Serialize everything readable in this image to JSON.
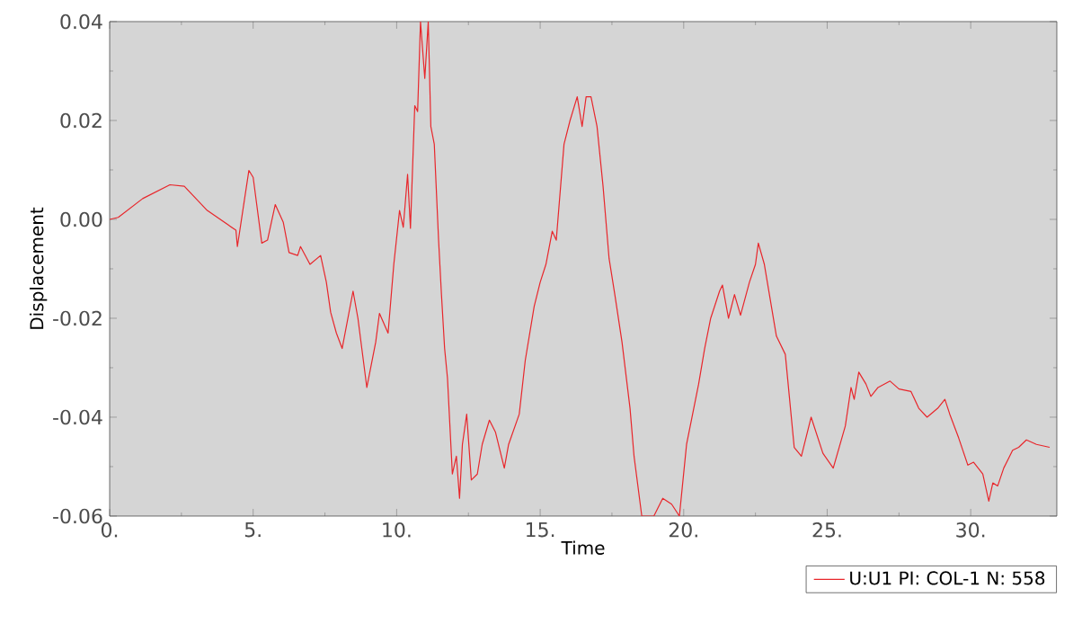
{
  "chart_data": {
    "type": "line",
    "xlabel": "Time",
    "ylabel": "Displacement",
    "xlim": [
      0,
      33
    ],
    "ylim": [
      -0.06,
      0.04
    ],
    "xticks": [
      {
        "value": 0,
        "label": "0."
      },
      {
        "value": 5,
        "label": "5."
      },
      {
        "value": 10,
        "label": "10."
      },
      {
        "value": 15,
        "label": "15."
      },
      {
        "value": 20,
        "label": "20."
      },
      {
        "value": 25,
        "label": "25."
      },
      {
        "value": 30,
        "label": "30."
      }
    ],
    "yticks": [
      {
        "value": -0.06,
        "label": "-0.06"
      },
      {
        "value": -0.04,
        "label": "-0.04"
      },
      {
        "value": -0.02,
        "label": "-0.02"
      },
      {
        "value": 0,
        "label": "0.00"
      },
      {
        "value": 0.02,
        "label": "0.02"
      },
      {
        "value": 0.04,
        "label": "0.04"
      }
    ],
    "grid": false,
    "legend": "bottom right",
    "marker": "none",
    "line_style": "solid",
    "series": [
      {
        "name": "U:U1 PI: COL-1 N: 558",
        "color": "#e8262b",
        "x": [
          0,
          0.3,
          1.15,
          2.1,
          2.6,
          3.4,
          4.4,
          4.45,
          4.85,
          5.0,
          5.3,
          5.5,
          5.77,
          6.05,
          6.25,
          6.55,
          6.65,
          6.98,
          7.35,
          7.55,
          7.7,
          7.9,
          8.1,
          8.48,
          8.65,
          8.96,
          9.27,
          9.4,
          9.7,
          9.9,
          10.1,
          10.23,
          10.38,
          10.48,
          10.63,
          10.73,
          10.83,
          10.98,
          11.1,
          11.19,
          11.31,
          11.46,
          11.56,
          11.67,
          11.77,
          11.94,
          12.08,
          12.19,
          12.29,
          12.44,
          12.6,
          12.81,
          12.98,
          13.23,
          13.44,
          13.75,
          13.9,
          14.27,
          14.48,
          14.79,
          15.0,
          15.2,
          15.42,
          15.56,
          15.83,
          16.04,
          16.29,
          16.46,
          16.6,
          16.77,
          16.98,
          17.19,
          17.4,
          17.6,
          17.85,
          18.13,
          18.27,
          18.54,
          18.96,
          19.27,
          19.58,
          19.85,
          20.1,
          20.31,
          20.52,
          20.73,
          20.94,
          21.25,
          21.35,
          21.56,
          21.77,
          21.98,
          22.29,
          22.5,
          22.6,
          22.81,
          23.23,
          23.54,
          23.85,
          24.1,
          24.44,
          24.85,
          25.21,
          25.63,
          25.83,
          25.94,
          26.1,
          26.35,
          26.52,
          26.77,
          27.19,
          27.5,
          27.92,
          28.19,
          28.48,
          28.85,
          29.1,
          29.27,
          29.58,
          29.9,
          30.1,
          30.42,
          30.63,
          30.77,
          30.94,
          31.15,
          31.46,
          31.67,
          31.94,
          32.29,
          32.75
        ],
        "values": [
          0,
          0.0004,
          0.0042,
          0.007,
          0.0067,
          0.0018,
          -0.0022,
          -0.0055,
          0.0099,
          0.0085,
          -0.0048,
          -0.0042,
          0.003,
          -0.0006,
          -0.0067,
          -0.0073,
          -0.0055,
          -0.0091,
          -0.0073,
          -0.0127,
          -0.0188,
          -0.023,
          -0.0261,
          -0.0145,
          -0.02,
          -0.034,
          -0.0248,
          -0.019,
          -0.023,
          -0.0091,
          0.0018,
          -0.0016,
          0.0091,
          -0.0018,
          0.023,
          0.0218,
          0.04,
          0.0285,
          0.04,
          0.0188,
          0.0152,
          -0.0042,
          -0.0152,
          -0.0261,
          -0.0321,
          -0.0515,
          -0.0479,
          -0.0564,
          -0.0455,
          -0.0394,
          -0.0527,
          -0.0515,
          -0.0455,
          -0.0406,
          -0.043,
          -0.0503,
          -0.0455,
          -0.0394,
          -0.0285,
          -0.0176,
          -0.0127,
          -0.0091,
          -0.0024,
          -0.0042,
          0.0152,
          0.02,
          0.0248,
          0.0188,
          0.0248,
          0.0248,
          0.0188,
          0.0067,
          -0.0079,
          -0.0152,
          -0.0248,
          -0.0382,
          -0.0479,
          -0.06,
          -0.06,
          -0.0564,
          -0.0576,
          -0.06,
          -0.0455,
          -0.0394,
          -0.0333,
          -0.0261,
          -0.02,
          -0.0145,
          -0.0133,
          -0.02,
          -0.0152,
          -0.0194,
          -0.0127,
          -0.0091,
          -0.0048,
          -0.0091,
          -0.0236,
          -0.0273,
          -0.0461,
          -0.0479,
          -0.04,
          -0.0473,
          -0.0503,
          -0.0418,
          -0.034,
          -0.0364,
          -0.0309,
          -0.0333,
          -0.0358,
          -0.034,
          -0.0327,
          -0.0343,
          -0.0348,
          -0.0382,
          -0.04,
          -0.0382,
          -0.0364,
          -0.0394,
          -0.0442,
          -0.0497,
          -0.0491,
          -0.0515,
          -0.057,
          -0.0533,
          -0.0539,
          -0.0503,
          -0.0467,
          -0.0461,
          -0.0446,
          -0.0455,
          -0.0461
        ]
      }
    ]
  }
}
